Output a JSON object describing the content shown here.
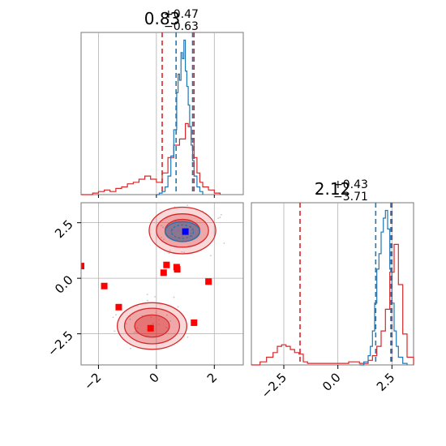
{
  "chart_data": {
    "type": "corner",
    "colors": {
      "blue": "#1f77b4",
      "red": "#d62728",
      "marker_red": "#ff0000",
      "marker_blue": "#0000ff",
      "grid": "#b0b0b0"
    },
    "marginals": [
      {
        "title_value": "0.83",
        "title_plus": "+0.47",
        "title_minus": "−0.63",
        "xlim": [
          -2.6,
          3.0
        ],
        "blue_quantiles": [
          0.68,
          1.25
        ],
        "red_quantiles": [
          0.2,
          1.3
        ],
        "blue_hist": {
          "x": [
            0.0,
            0.1,
            0.2,
            0.3,
            0.4,
            0.5,
            0.6,
            0.7,
            0.75,
            0.8,
            0.85,
            0.9,
            0.95,
            1.0,
            1.05,
            1.1,
            1.15,
            1.2,
            1.25,
            1.3,
            1.4,
            1.5,
            1.6
          ],
          "y": [
            0.0,
            0.01,
            0.02,
            0.05,
            0.12,
            0.25,
            0.42,
            0.66,
            0.78,
            0.74,
            0.92,
            0.88,
            1.0,
            0.8,
            0.7,
            0.58,
            0.44,
            0.32,
            0.22,
            0.12,
            0.05,
            0.02,
            0.0
          ]
        },
        "red_hist": {
          "x": [
            -2.6,
            -2.2,
            -2.0,
            -1.8,
            -1.6,
            -1.4,
            -1.2,
            -1.0,
            -0.8,
            -0.6,
            -0.4,
            -0.2,
            0.0,
            0.2,
            0.4,
            0.6,
            0.8,
            1.0,
            1.1,
            1.2,
            1.3,
            1.4,
            1.5,
            1.6,
            1.8,
            2.0,
            2.2
          ],
          "y": [
            0.0,
            0.01,
            0.02,
            0.03,
            0.02,
            0.04,
            0.05,
            0.07,
            0.08,
            0.1,
            0.12,
            0.1,
            0.08,
            0.14,
            0.24,
            0.32,
            0.36,
            0.46,
            0.44,
            0.36,
            0.24,
            0.14,
            0.08,
            0.05,
            0.03,
            0.01,
            0.0
          ]
        }
      },
      {
        "title_value": "2.12",
        "title_plus": "+0.43",
        "title_minus": "−3.71",
        "xlim": [
          -4.0,
          3.5
        ],
        "blue_quantiles": [
          1.75,
          2.45
        ],
        "red_quantiles": [
          -1.75,
          2.5
        ],
        "blue_hist": {
          "x": [
            1.0,
            1.2,
            1.4,
            1.5,
            1.6,
            1.7,
            1.8,
            1.9,
            2.0,
            2.1,
            2.2,
            2.3,
            2.4,
            2.5,
            2.6,
            2.7,
            2.8,
            3.0,
            3.2
          ],
          "y": [
            0.0,
            0.02,
            0.06,
            0.12,
            0.22,
            0.4,
            0.62,
            0.72,
            0.86,
            0.95,
            1.0,
            0.88,
            0.62,
            0.4,
            0.22,
            0.12,
            0.05,
            0.01,
            0.0
          ]
        },
        "red_hist": {
          "x": [
            -4.0,
            -3.6,
            -3.3,
            -3.0,
            -2.8,
            -2.6,
            -2.4,
            -2.2,
            -2.0,
            -1.8,
            -1.6,
            -1.4,
            -1.0,
            -0.5,
            0.0,
            0.5,
            1.0,
            1.4,
            1.6,
            1.8,
            2.0,
            2.2,
            2.4,
            2.6,
            2.8,
            3.0,
            3.2,
            3.5
          ],
          "y": [
            0.0,
            0.02,
            0.05,
            0.08,
            0.12,
            0.13,
            0.12,
            0.1,
            0.08,
            0.07,
            0.02,
            0.01,
            0.01,
            0.01,
            0.01,
            0.02,
            0.01,
            0.03,
            0.06,
            0.12,
            0.22,
            0.36,
            0.6,
            0.78,
            0.52,
            0.2,
            0.05,
            0.0
          ]
        }
      }
    ],
    "scatter_panel": {
      "xlim": [
        -2.6,
        3.0
      ],
      "ylim": [
        -3.9,
        3.4
      ],
      "xticks": [
        -2,
        0,
        2
      ],
      "yticks": [
        -2.5,
        0.0,
        2.5
      ],
      "xtick_labels": [
        "−2",
        "0",
        "2"
      ],
      "ytick_labels": [
        "−2.5",
        "0.0",
        "2.5"
      ],
      "x2ticks": [
        -2.5,
        0.0,
        2.5
      ],
      "x2tick_labels": [
        "−2.5",
        "0.0",
        "2.5"
      ],
      "blue_contours": [
        {
          "cx": 0.9,
          "cy": 2.1,
          "rx": 0.6,
          "ry": 0.45,
          "filled": true
        },
        {
          "cx": 0.9,
          "cy": 2.1,
          "rx": 0.38,
          "ry": 0.3,
          "filled": false
        }
      ],
      "red_contours": [
        {
          "cx": 0.9,
          "cy": 2.15,
          "rx": 1.15,
          "ry": 1.05
        },
        {
          "cx": 0.9,
          "cy": 2.15,
          "rx": 0.9,
          "ry": 0.75
        },
        {
          "cx": 0.9,
          "cy": 2.15,
          "rx": 0.6,
          "ry": 0.5
        },
        {
          "cx": -0.15,
          "cy": -2.15,
          "rx": 1.2,
          "ry": 1.05
        },
        {
          "cx": -0.15,
          "cy": -2.15,
          "rx": 0.95,
          "ry": 0.8
        },
        {
          "cx": -0.15,
          "cy": -2.15,
          "rx": 0.6,
          "ry": 0.5
        }
      ],
      "red_markers": [
        {
          "x": -2.6,
          "y": 0.55
        },
        {
          "x": -1.8,
          "y": -0.35
        },
        {
          "x": -1.3,
          "y": -1.3
        },
        {
          "x": -0.2,
          "y": -2.25
        },
        {
          "x": 0.25,
          "y": 0.25
        },
        {
          "x": 0.35,
          "y": 0.6
        },
        {
          "x": 0.7,
          "y": 0.5
        },
        {
          "x": 0.72,
          "y": 0.4
        },
        {
          "x": 1.3,
          "y": -2.0
        },
        {
          "x": 1.8,
          "y": -0.15
        }
      ],
      "blue_marker": {
        "x": 1.0,
        "y": 2.1
      }
    }
  }
}
